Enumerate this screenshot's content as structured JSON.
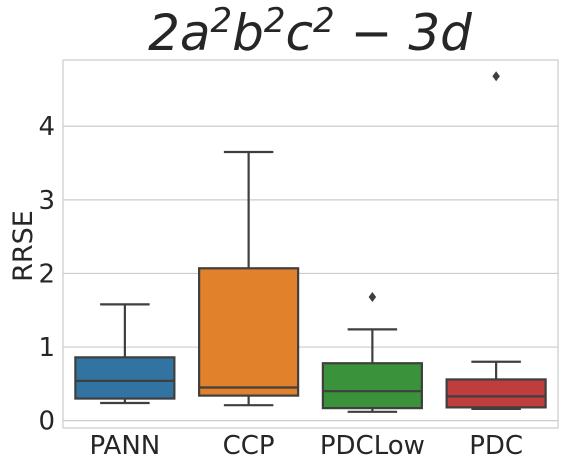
{
  "chart_data": {
    "type": "box",
    "title": "2a²b²c² − 3d",
    "title_parts": [
      {
        "text": "2a",
        "sup": false
      },
      {
        "text": "2",
        "sup": true
      },
      {
        "text": "b",
        "sup": false
      },
      {
        "text": "2",
        "sup": true
      },
      {
        "text": "c",
        "sup": false
      },
      {
        "text": "2",
        "sup": true
      },
      {
        "text": " − 3d",
        "sup": false
      }
    ],
    "xlabel": "",
    "ylabel": "RRSE",
    "ylim": [
      -0.1,
      4.9
    ],
    "yticks": [
      0,
      1,
      2,
      3,
      4
    ],
    "grid": true,
    "categories": [
      "PANN",
      "CCP",
      "PDCLow",
      "PDC"
    ],
    "colors": {
      "PANN": "#3274a1",
      "CCP": "#e1812c",
      "PDCLow": "#3a923a",
      "PDC": "#c03d3e",
      "line": "#3f3f3f",
      "grid": "#cccccc",
      "text": "#262626"
    },
    "series": [
      {
        "category": "PANN",
        "whisker_low": 0.24,
        "q1": 0.3,
        "median": 0.54,
        "q3": 0.86,
        "whisker_high": 1.58,
        "outliers": []
      },
      {
        "category": "CCP",
        "whisker_low": 0.21,
        "q1": 0.34,
        "median": 0.45,
        "q3": 2.07,
        "whisker_high": 3.65,
        "outliers": []
      },
      {
        "category": "PDCLow",
        "whisker_low": 0.12,
        "q1": 0.17,
        "median": 0.4,
        "q3": 0.78,
        "whisker_high": 1.24,
        "outliers": [
          1.68
        ]
      },
      {
        "category": "PDC",
        "whisker_low": 0.16,
        "q1": 0.18,
        "median": 0.33,
        "q3": 0.56,
        "whisker_high": 0.8,
        "outliers": [
          4.68
        ]
      }
    ]
  }
}
